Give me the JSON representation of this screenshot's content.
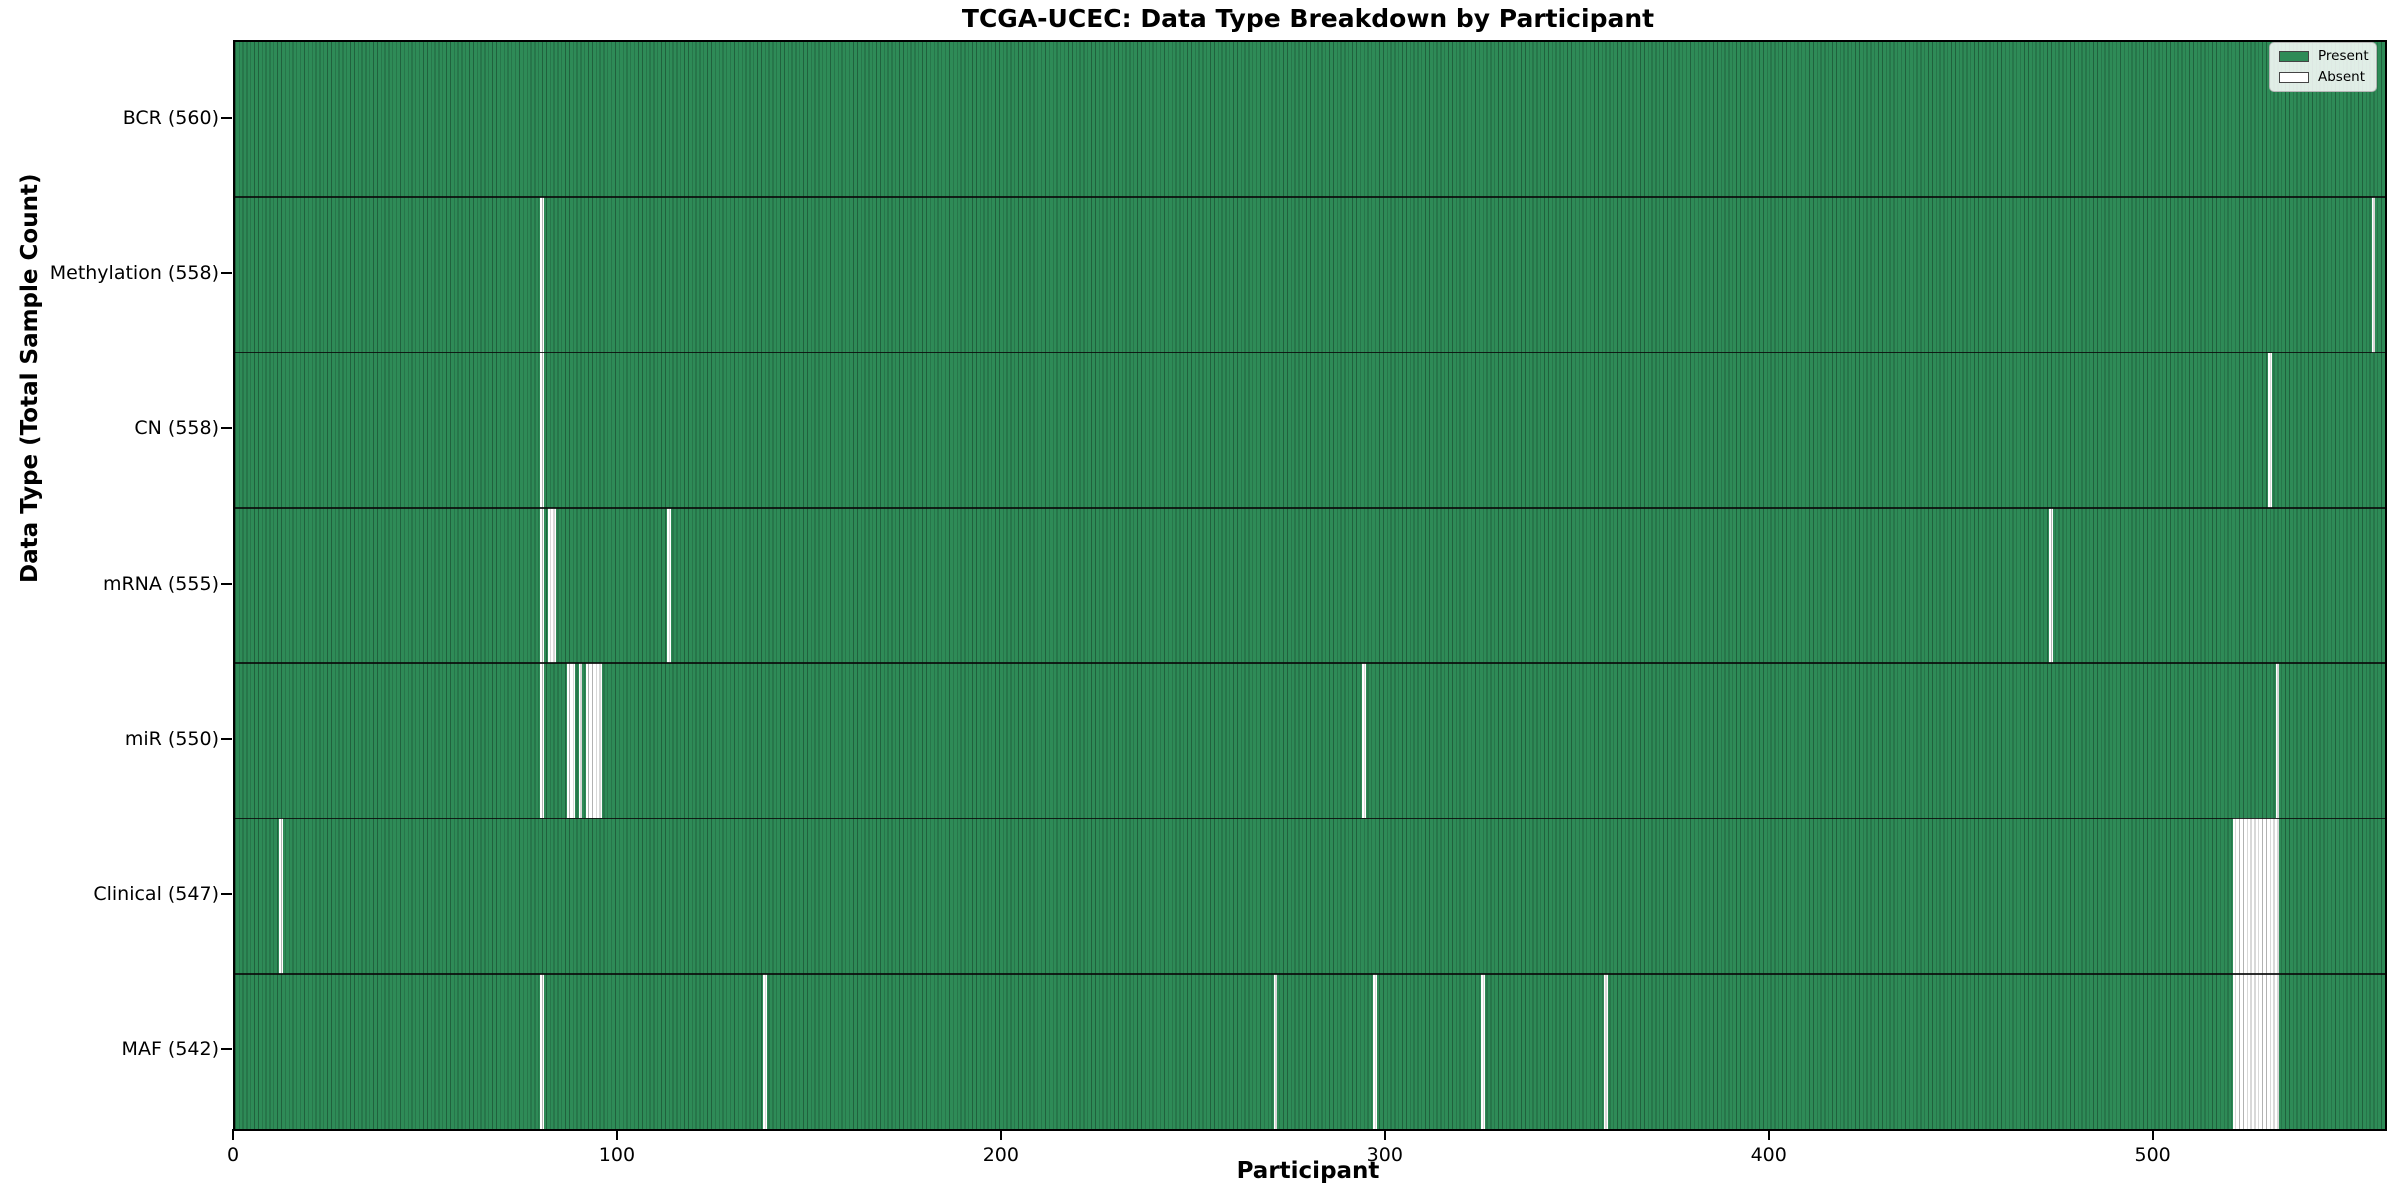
{
  "title": "TCGA-UCEC: Data Type Breakdown by Participant",
  "axes": {
    "x_label": "Participant",
    "y_label": "Data Type (Total Sample Count)"
  },
  "legend": {
    "items": [
      {
        "label": "Present",
        "color": "#2e8b57"
      },
      {
        "label": "Absent",
        "color": "#ffffff"
      }
    ]
  },
  "chart_data": {
    "type": "heatmap",
    "title": "TCGA-UCEC: Data Type Breakdown by Participant",
    "xlabel": "Participant",
    "ylabel": "Data Type (Total Sample Count)",
    "x_ticks": [
      0,
      100,
      200,
      300,
      400,
      500
    ],
    "x_range": [
      0,
      560
    ],
    "n_participants": 560,
    "present_color": "#2e8b57",
    "absent_color": "#ffffff",
    "grid": false,
    "legend_position": "upper right",
    "legend_entries": [
      "Present",
      "Absent"
    ],
    "rows": [
      {
        "label": "BCR (560)",
        "data_type": "BCR",
        "present_count": 560,
        "absent_participants": []
      },
      {
        "label": "Methylation (558)",
        "data_type": "Methylation",
        "present_count": 558,
        "absent_participants": [
          80,
          557
        ]
      },
      {
        "label": "CN (558)",
        "data_type": "CN",
        "present_count": 558,
        "absent_participants": [
          80,
          530
        ]
      },
      {
        "label": "mRNA (555)",
        "data_type": "mRNA",
        "present_count": 555,
        "absent_participants": [
          80,
          82,
          83,
          113,
          473
        ]
      },
      {
        "label": "miR (550)",
        "data_type": "miR",
        "present_count": 550,
        "absent_participants": [
          80,
          87,
          88,
          90,
          92,
          93,
          94,
          95,
          294,
          532
        ]
      },
      {
        "label": "Clinical (547)",
        "data_type": "Clinical",
        "present_count": 547,
        "absent_participants": [
          12,
          521,
          522,
          523,
          524,
          525,
          526,
          527,
          528,
          529,
          530,
          531,
          532
        ]
      },
      {
        "label": "MAF (542)",
        "data_type": "MAF",
        "present_count": 542,
        "absent_participants": [
          80,
          138,
          271,
          297,
          325,
          357,
          521,
          522,
          523,
          524,
          525,
          526,
          527,
          528,
          529,
          530,
          531,
          532
        ]
      }
    ]
  }
}
